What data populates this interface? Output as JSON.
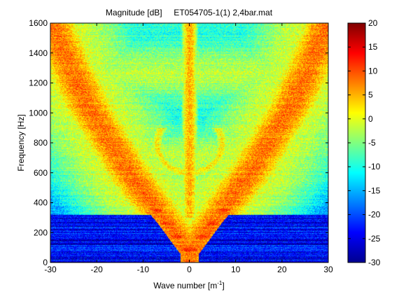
{
  "chart_data": {
    "type": "heatmap",
    "title": "Magnitude [dB]     ET054705-1(1) 2,4bar.mat",
    "xlabel": "Wave number [m",
    "xlabel_sup": "-1",
    "xlabel_tail": "]",
    "ylabel": "Frequency [Hz]",
    "xlim": [
      -30,
      30
    ],
    "ylim": [
      0,
      1600
    ],
    "xticks": [
      "-30",
      "-20",
      "-10",
      "0",
      "10",
      "20",
      "30"
    ],
    "yticks": [
      "0",
      "200",
      "400",
      "600",
      "800",
      "1000",
      "1200",
      "1400",
      "1600"
    ],
    "colorbar": {
      "range": [
        -30,
        20
      ],
      "ticks": [
        "-30",
        "-25",
        "-20",
        "-15",
        "-10",
        "-5",
        "0",
        "5",
        "10",
        "15",
        "20"
      ],
      "colormap": "jet"
    },
    "features": [
      {
        "kind": "v-branch",
        "description": "outer bending wave branch",
        "points": [
          [
            0,
            60
          ],
          [
            -13,
            600
          ],
          [
            -22,
            1050
          ],
          [
            -30,
            1600
          ],
          [
            13,
            600
          ],
          [
            22,
            1050
          ],
          [
            30,
            1600
          ]
        ],
        "level_db": 8
      },
      {
        "kind": "v-branch",
        "description": "inner dotted branch",
        "points": [
          [
            0,
            80
          ],
          [
            -8,
            380
          ],
          [
            8,
            380
          ]
        ],
        "level_db": 12
      },
      {
        "kind": "ring",
        "description": "cut-on mode arc",
        "center": [
          0,
          800
        ],
        "radius_k": 7,
        "radius_f": 200,
        "level_db": 2
      },
      {
        "kind": "vertical-line",
        "description": "k=0 ridge",
        "x": 0,
        "f_range": [
          300,
          1600
        ],
        "level_db": 5
      }
    ],
    "background_db": -15,
    "low_freq_floor_db": -27
  }
}
